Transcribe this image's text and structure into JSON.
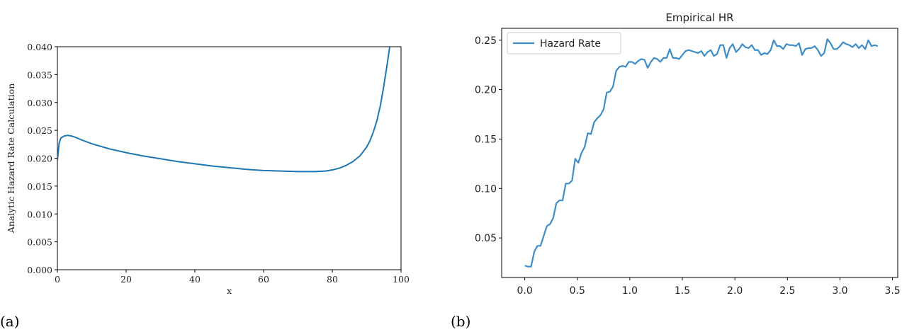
{
  "captions": {
    "a": "(a)",
    "b": "(b)"
  },
  "chart_data": [
    {
      "type": "line",
      "title": "",
      "xlabel": "x",
      "ylabel": "Analytic Hazard Rate Calculation",
      "xlim": [
        0,
        100
      ],
      "ylim": [
        0,
        0.04
      ],
      "xticks": [
        0,
        20,
        40,
        60,
        80,
        100
      ],
      "xtick_labels": [
        "0",
        "20",
        "40",
        "60",
        "80",
        "100"
      ],
      "yticks": [
        0,
        0.005,
        0.01,
        0.015,
        0.02,
        0.025,
        0.03,
        0.035,
        0.04
      ],
      "ytick_labels": [
        "0.000",
        "0.005",
        "0.010",
        "0.015",
        "0.020",
        "0.025",
        "0.030",
        "0.035",
        "0.040"
      ],
      "grid": false,
      "line_color": "#1f77b4",
      "series": [
        {
          "x": [
            0,
            0.5,
            1,
            2,
            3,
            4,
            5,
            7,
            10,
            15,
            20,
            25,
            30,
            35,
            40,
            45,
            50,
            55,
            60,
            65,
            70,
            75,
            78,
            80,
            82,
            84,
            86,
            88,
            90,
            91,
            92,
            93,
            94,
            95,
            96,
            96.7
          ],
          "y": [
            0.0195,
            0.0227,
            0.0236,
            0.024,
            0.0241,
            0.024,
            0.0238,
            0.0233,
            0.0226,
            0.0217,
            0.021,
            0.0204,
            0.0199,
            0.0194,
            0.019,
            0.0186,
            0.0183,
            0.018,
            0.0178,
            0.0177,
            0.0176,
            0.0176,
            0.0177,
            0.0179,
            0.0182,
            0.0187,
            0.0194,
            0.0204,
            0.022,
            0.0232,
            0.0248,
            0.0268,
            0.0295,
            0.033,
            0.037,
            0.04
          ]
        }
      ]
    },
    {
      "type": "line",
      "title": "Empirical HR",
      "xlabel": "",
      "ylabel": "",
      "xlim": [
        -0.22,
        3.55
      ],
      "ylim": [
        0.01,
        0.262
      ],
      "xticks": [
        0,
        0.5,
        1,
        1.5,
        2,
        2.5,
        3,
        3.5
      ],
      "xtick_labels": [
        "0.0",
        "0.5",
        "1.0",
        "1.5",
        "2.0",
        "2.5",
        "3.0",
        "3.5"
      ],
      "yticks": [
        0.05,
        0.1,
        0.15,
        0.2,
        0.25
      ],
      "ytick_labels": [
        "0.05",
        "0.10",
        "0.15",
        "0.20",
        "0.25"
      ],
      "grid": false,
      "legend": "upper-left",
      "line_color": "#3e8dc7",
      "series": [
        {
          "name": "Hazard Rate",
          "x": [
            0.0,
            0.03,
            0.06,
            0.09,
            0.12,
            0.15,
            0.18,
            0.21,
            0.24,
            0.27,
            0.3,
            0.33,
            0.36,
            0.39,
            0.42,
            0.45,
            0.48,
            0.51,
            0.54,
            0.57,
            0.6,
            0.63,
            0.66,
            0.69,
            0.72,
            0.75,
            0.78,
            0.81,
            0.84,
            0.87,
            0.9,
            0.93,
            0.96,
            0.99,
            1.02,
            1.05,
            1.08,
            1.11,
            1.14,
            1.17,
            1.2,
            1.23,
            1.26,
            1.29,
            1.32,
            1.35,
            1.38,
            1.41,
            1.44,
            1.47,
            1.5,
            1.53,
            1.56,
            1.59,
            1.62,
            1.65,
            1.68,
            1.71,
            1.74,
            1.77,
            1.8,
            1.83,
            1.86,
            1.89,
            1.92,
            1.95,
            1.98,
            2.01,
            2.04,
            2.07,
            2.1,
            2.13,
            2.16,
            2.19,
            2.22,
            2.25,
            2.28,
            2.31,
            2.34,
            2.37,
            2.4,
            2.43,
            2.46,
            2.49,
            2.52,
            2.55,
            2.58,
            2.61,
            2.64,
            2.67,
            2.7,
            2.73,
            2.76,
            2.79,
            2.82,
            2.85,
            2.88,
            2.91,
            2.94,
            2.97,
            3.0,
            3.03,
            3.06,
            3.09,
            3.12,
            3.15,
            3.18,
            3.21,
            3.24,
            3.27,
            3.3,
            3.33,
            3.36
          ],
          "y": [
            0.022,
            0.021,
            0.021,
            0.036,
            0.042,
            0.042,
            0.052,
            0.062,
            0.064,
            0.07,
            0.085,
            0.088,
            0.088,
            0.105,
            0.105,
            0.108,
            0.13,
            0.126,
            0.136,
            0.142,
            0.156,
            0.155,
            0.167,
            0.171,
            0.174,
            0.18,
            0.197,
            0.198,
            0.203,
            0.219,
            0.223,
            0.224,
            0.223,
            0.228,
            0.228,
            0.226,
            0.229,
            0.231,
            0.23,
            0.222,
            0.228,
            0.232,
            0.231,
            0.228,
            0.232,
            0.232,
            0.241,
            0.232,
            0.232,
            0.231,
            0.235,
            0.239,
            0.24,
            0.239,
            0.238,
            0.237,
            0.239,
            0.234,
            0.238,
            0.24,
            0.234,
            0.236,
            0.245,
            0.245,
            0.232,
            0.242,
            0.246,
            0.238,
            0.241,
            0.246,
            0.243,
            0.242,
            0.245,
            0.24,
            0.24,
            0.235,
            0.237,
            0.236,
            0.24,
            0.25,
            0.244,
            0.244,
            0.241,
            0.246,
            0.245,
            0.245,
            0.244,
            0.247,
            0.235,
            0.241,
            0.242,
            0.242,
            0.244,
            0.24,
            0.234,
            0.237,
            0.251,
            0.247,
            0.241,
            0.241,
            0.244,
            0.248,
            0.246,
            0.245,
            0.243,
            0.246,
            0.242,
            0.245,
            0.241,
            0.25,
            0.244,
            0.245,
            0.244
          ]
        }
      ]
    }
  ]
}
